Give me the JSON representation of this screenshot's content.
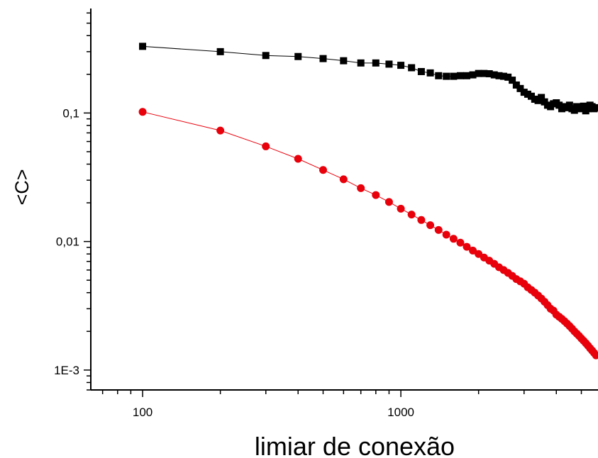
{
  "chart_data": {
    "type": "scatter",
    "xlabel": "limiar de conexão",
    "ylabel": "<C>",
    "xscale": "log",
    "yscale": "log",
    "xlim": [
      63,
      5800
    ],
    "ylim": [
      0.0007,
      0.65
    ],
    "grid": false,
    "x_ticks": [
      {
        "value": 100,
        "label": "100"
      },
      {
        "value": 1000,
        "label": "1000"
      }
    ],
    "y_ticks": [
      {
        "value": 0.001,
        "label": "1E-3"
      },
      {
        "value": 0.01,
        "label": "0,01"
      },
      {
        "value": 0.1,
        "label": "0,1"
      }
    ],
    "series": [
      {
        "color": "#000000",
        "marker": "square",
        "points": [
          [
            100,
            0.33
          ],
          [
            200,
            0.3
          ],
          [
            300,
            0.28
          ],
          [
            400,
            0.275
          ],
          [
            500,
            0.265
          ],
          [
            600,
            0.255
          ],
          [
            700,
            0.245
          ],
          [
            800,
            0.245
          ],
          [
            900,
            0.24
          ],
          [
            1000,
            0.235
          ],
          [
            1100,
            0.225
          ],
          [
            1200,
            0.21
          ],
          [
            1300,
            0.205
          ],
          [
            1400,
            0.195
          ],
          [
            1500,
            0.193
          ],
          [
            1600,
            0.193
          ],
          [
            1700,
            0.195
          ],
          [
            1800,
            0.195
          ],
          [
            1900,
            0.198
          ],
          [
            2000,
            0.203
          ],
          [
            2100,
            0.203
          ],
          [
            2200,
            0.202
          ],
          [
            2300,
            0.198
          ],
          [
            2400,
            0.195
          ],
          [
            2500,
            0.193
          ],
          [
            2600,
            0.19
          ],
          [
            2700,
            0.18
          ],
          [
            2800,
            0.165
          ],
          [
            2900,
            0.155
          ],
          [
            3000,
            0.145
          ],
          [
            3100,
            0.14
          ],
          [
            3200,
            0.135
          ],
          [
            3300,
            0.128
          ],
          [
            3400,
            0.125
          ],
          [
            3500,
            0.132
          ],
          [
            3600,
            0.122
          ],
          [
            3700,
            0.115
          ],
          [
            3800,
            0.112
          ],
          [
            3900,
            0.118
          ],
          [
            4000,
            0.12
          ],
          [
            4100,
            0.115
          ],
          [
            4200,
            0.108
          ],
          [
            4300,
            0.112
          ],
          [
            4400,
            0.11
          ],
          [
            4500,
            0.115
          ],
          [
            4600,
            0.108
          ],
          [
            4700,
            0.105
          ],
          [
            4800,
            0.112
          ],
          [
            4900,
            0.11
          ],
          [
            5000,
            0.108
          ],
          [
            5100,
            0.113
          ],
          [
            5200,
            0.104
          ],
          [
            5300,
            0.108
          ],
          [
            5400,
            0.115
          ],
          [
            5500,
            0.112
          ],
          [
            5600,
            0.108
          ],
          [
            5700,
            0.11
          ]
        ]
      },
      {
        "color": "#e8000b",
        "marker": "circle",
        "points": [
          [
            100,
            0.102
          ],
          [
            200,
            0.073
          ],
          [
            300,
            0.055
          ],
          [
            400,
            0.044
          ],
          [
            500,
            0.036
          ],
          [
            600,
            0.0305
          ],
          [
            700,
            0.026
          ],
          [
            800,
            0.023
          ],
          [
            900,
            0.0203
          ],
          [
            1000,
            0.018
          ],
          [
            1100,
            0.0162
          ],
          [
            1200,
            0.0147
          ],
          [
            1300,
            0.0134
          ],
          [
            1400,
            0.0123
          ],
          [
            1500,
            0.0113
          ],
          [
            1600,
            0.0105
          ],
          [
            1700,
            0.0098
          ],
          [
            1800,
            0.0091
          ],
          [
            1900,
            0.0085
          ],
          [
            2000,
            0.008
          ],
          [
            2100,
            0.0075
          ],
          [
            2200,
            0.0071
          ],
          [
            2300,
            0.0067
          ],
          [
            2400,
            0.0063
          ],
          [
            2500,
            0.006
          ],
          [
            2600,
            0.0057
          ],
          [
            2700,
            0.0054
          ],
          [
            2800,
            0.0051
          ],
          [
            2900,
            0.0049
          ],
          [
            3000,
            0.0047
          ],
          [
            3100,
            0.0044
          ],
          [
            3200,
            0.0042
          ],
          [
            3300,
            0.004
          ],
          [
            3400,
            0.0038
          ],
          [
            3500,
            0.0036
          ],
          [
            3600,
            0.0034
          ],
          [
            3700,
            0.0032
          ],
          [
            3800,
            0.003
          ],
          [
            3900,
            0.0029
          ],
          [
            4000,
            0.0027
          ],
          [
            4100,
            0.0026
          ],
          [
            4200,
            0.0025
          ],
          [
            4300,
            0.0024
          ],
          [
            4400,
            0.0023
          ],
          [
            4500,
            0.0022
          ],
          [
            4600,
            0.0021
          ],
          [
            4700,
            0.002
          ],
          [
            4800,
            0.00192
          ],
          [
            4900,
            0.00184
          ],
          [
            5000,
            0.00176
          ],
          [
            5100,
            0.00169
          ],
          [
            5200,
            0.00162
          ],
          [
            5300,
            0.00155
          ],
          [
            5400,
            0.00148
          ],
          [
            5500,
            0.00142
          ],
          [
            5600,
            0.00136
          ],
          [
            5700,
            0.0013
          ]
        ]
      }
    ]
  }
}
